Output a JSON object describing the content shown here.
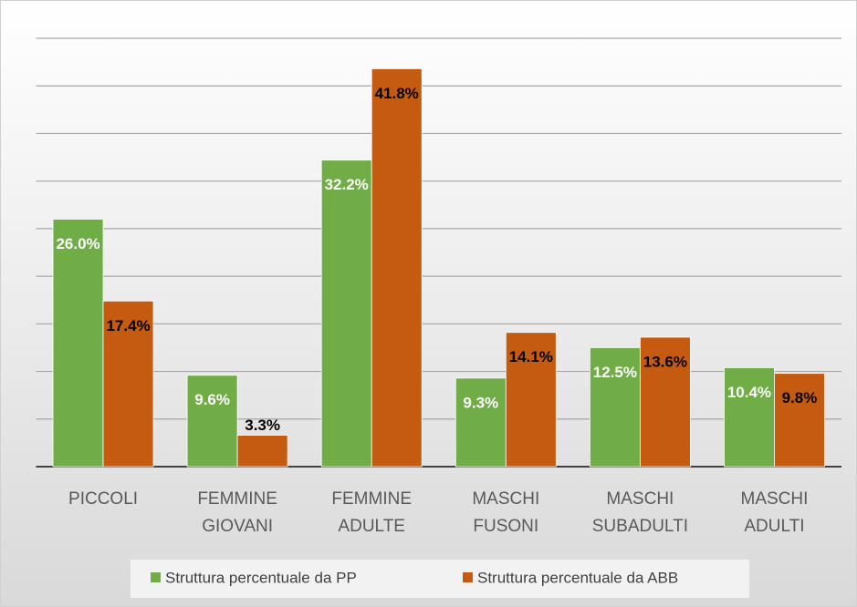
{
  "chart_data": {
    "type": "bar",
    "categories": [
      "PICCOLI",
      "FEMMINE GIOVANI",
      "FEMMINE ADULTE",
      "MASCHI FUSONI",
      "MASCHI SUBADULTI",
      "MASCHI ADULTI"
    ],
    "series": [
      {
        "name": "Struttura percentuale da PP",
        "color": "#70ad47",
        "label_color": "#ffffff",
        "values": [
          26.0,
          9.6,
          32.2,
          9.3,
          12.5,
          10.4
        ],
        "value_labels": [
          "26.0%",
          "9.6%",
          "32.2%",
          "9.3%",
          "12.5%",
          "10.4%"
        ]
      },
      {
        "name": "Struttura percentuale da ABB",
        "color": "#c55a11",
        "label_color": "#000000",
        "values": [
          17.4,
          3.3,
          41.8,
          14.1,
          13.6,
          9.8
        ],
        "value_labels": [
          "17.4%",
          "3.3%",
          "41.8%",
          "14.1%",
          "13.6%",
          "9.8%"
        ]
      }
    ],
    "ylim": [
      0,
      45
    ],
    "yticks": [
      0,
      5,
      10,
      15,
      20,
      25,
      30,
      35,
      40,
      45
    ],
    "grid": true
  }
}
